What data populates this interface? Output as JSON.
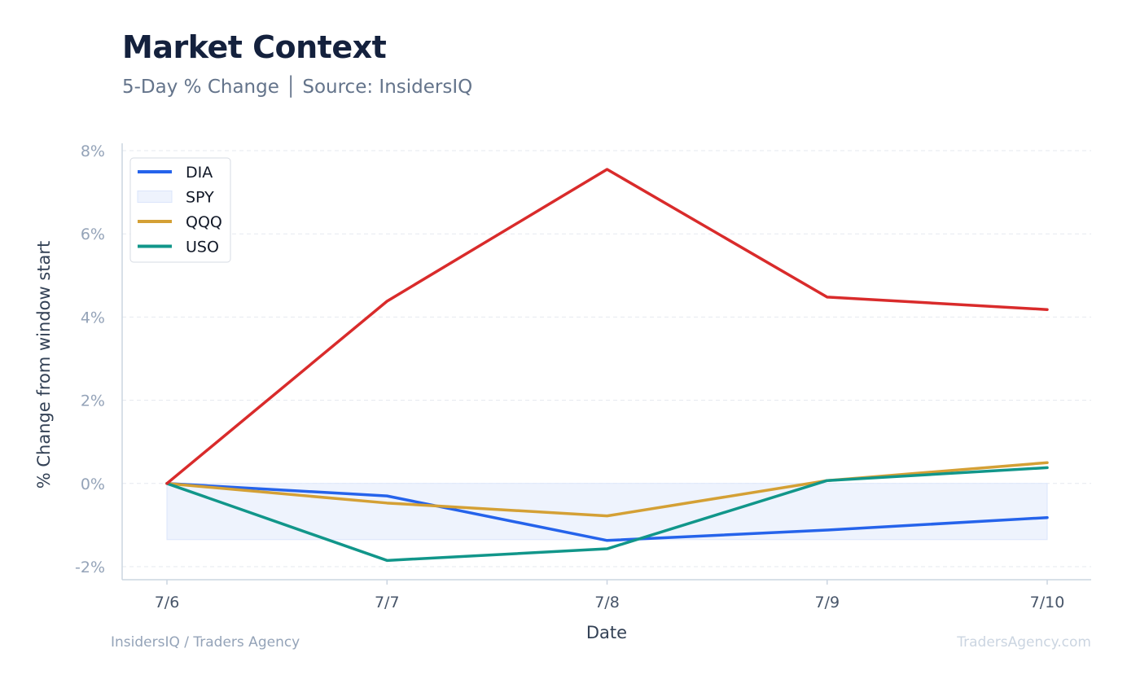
{
  "header": {
    "title": "Market Context",
    "subtitle": "5-Day % Change │ Source: InsidersIQ"
  },
  "footer": {
    "left": "InsidersIQ / Traders Agency",
    "right": "TradersAgency.com"
  },
  "colors": {
    "DIA": "#2563eb",
    "SPY_fill": "#eef3fd",
    "SPY_edge": "#dbe5fb",
    "QQQ": "#d4a035",
    "USO": "#11968a",
    "red_series": "#d92b2b"
  },
  "chart_data": {
    "type": "line",
    "xlabel": "Date",
    "ylabel": "% Change from window start",
    "ylim": [
      -2.3,
      8.0
    ],
    "y_ticks": [
      -2,
      0,
      2,
      4,
      6,
      8
    ],
    "y_tick_labels": [
      "-2%",
      "0%",
      "2%",
      "4%",
      "6%",
      "8%"
    ],
    "categories": [
      "7/6",
      "7/7",
      "7/8",
      "7/9",
      "7/10"
    ],
    "grid": true,
    "legend_position": "top-left",
    "legend": [
      "DIA",
      "SPY",
      "QQQ",
      "USO"
    ],
    "series": [
      {
        "name": "DIA",
        "kind": "line",
        "color": "#2563eb",
        "values": [
          0.0,
          -0.3,
          -1.37,
          -1.12,
          -0.82
        ]
      },
      {
        "name": "SPY",
        "kind": "area",
        "color": "#eef3fd",
        "values": [
          -1.35,
          -1.35,
          -1.35,
          -1.35,
          -1.35
        ]
      },
      {
        "name": "QQQ",
        "kind": "line",
        "color": "#d4a035",
        "values": [
          0.0,
          -0.47,
          -0.78,
          0.07,
          0.5
        ]
      },
      {
        "name": "USO",
        "kind": "line",
        "color": "#11968a",
        "values": [
          0.0,
          -1.85,
          -1.57,
          0.07,
          0.38
        ]
      },
      {
        "kind": "line",
        "color": "#d92b2b",
        "values": [
          0.0,
          4.38,
          7.55,
          4.48,
          4.18
        ]
      }
    ]
  }
}
